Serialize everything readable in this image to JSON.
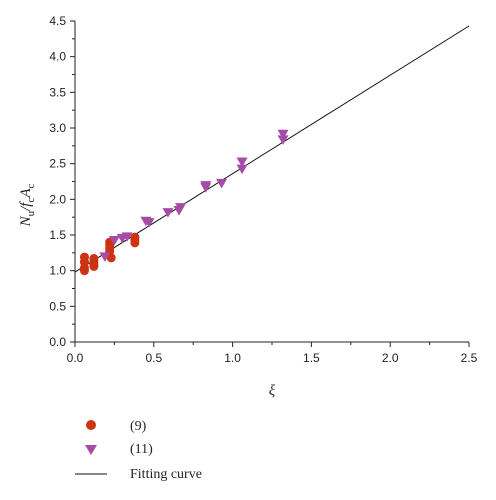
{
  "chart_data": {
    "type": "scatter",
    "xlabel": "ξ",
    "ylabel": {
      "main": "N",
      "sub1": "u",
      "mid": "/f",
      "sub2": "c",
      "tail": "A",
      "sub3": "c"
    },
    "xlim": [
      0,
      2.5
    ],
    "ylim": [
      0,
      4.5
    ],
    "x_ticks": [
      "0.0",
      "0.5",
      "1.0",
      "1.5",
      "2.0",
      "2.5"
    ],
    "y_ticks": [
      "0.0",
      "0.5",
      "1.0",
      "1.5",
      "2.0",
      "2.5",
      "3.0",
      "3.5",
      "4.0",
      "4.5"
    ],
    "grid": false,
    "legend_placement": "below",
    "series": [
      {
        "name": "(9)",
        "marker": "circle",
        "color": "#cc3311",
        "points": [
          [
            0.06,
            1.19
          ],
          [
            0.06,
            1.12
          ],
          [
            0.06,
            1.04
          ],
          [
            0.06,
            1.0
          ],
          [
            0.12,
            1.17
          ],
          [
            0.12,
            1.13
          ],
          [
            0.12,
            1.09
          ],
          [
            0.12,
            1.06
          ],
          [
            0.22,
            1.4
          ],
          [
            0.22,
            1.35
          ],
          [
            0.22,
            1.31
          ],
          [
            0.22,
            1.27
          ],
          [
            0.23,
            1.18
          ],
          [
            0.38,
            1.47
          ],
          [
            0.38,
            1.43
          ],
          [
            0.38,
            1.39
          ]
        ]
      },
      {
        "name": "(11)",
        "marker": "triangle-down",
        "color": "#a64ca6",
        "points": [
          [
            0.19,
            1.2
          ],
          [
            0.25,
            1.43
          ],
          [
            0.3,
            1.46
          ],
          [
            0.33,
            1.48
          ],
          [
            0.45,
            1.7
          ],
          [
            0.47,
            1.68
          ],
          [
            0.59,
            1.82
          ],
          [
            0.67,
            1.89
          ],
          [
            0.66,
            1.85
          ],
          [
            0.83,
            2.2
          ],
          [
            0.83,
            2.17
          ],
          [
            0.93,
            2.23
          ],
          [
            1.06,
            2.53
          ],
          [
            1.06,
            2.43
          ],
          [
            1.32,
            2.92
          ],
          [
            1.32,
            2.84
          ]
        ]
      },
      {
        "name": "Fitting curve",
        "type": "line",
        "color": "#111111",
        "x": [
          0,
          2.5
        ],
        "y": [
          0.98,
          4.43
        ]
      }
    ]
  }
}
